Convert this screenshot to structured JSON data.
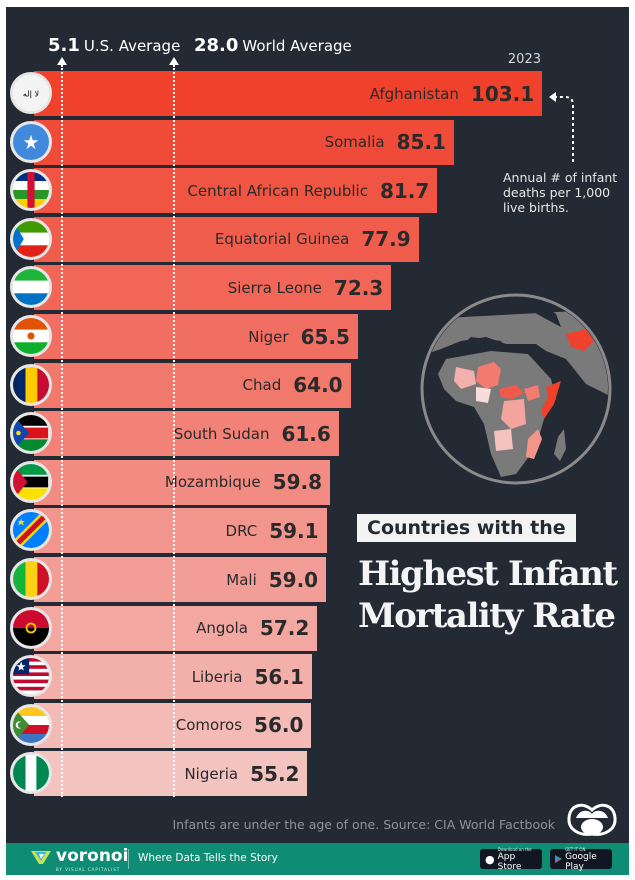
{
  "reference_lines": [
    {
      "value": "5.1",
      "label": "U.S. Average"
    },
    {
      "value": "28.0",
      "label": "World Average"
    }
  ],
  "year_label": "2023",
  "annotation": "Annual # of infant deaths per 1,000 live births.",
  "title": {
    "kicker": "Countries with the",
    "main_line1": "Highest Infant",
    "main_line2": "Mortality Rate"
  },
  "source": "Infants are under the age of one. Source: CIA World Factbook",
  "footer": {
    "brand": "voronoi",
    "brand_sub": "BY VISUAL CAPITALIST",
    "tagline": "Where Data Tells the Story",
    "app_store_small": "Download on the",
    "app_store_big": "App Store",
    "google_play_small": "GET IT ON",
    "google_play_big": "Google Play"
  },
  "colors": {
    "background": "#232a33",
    "bar_top": "#f0412d",
    "bar_bottom": "#f3c3c0",
    "footer": "#0e8c74",
    "text_dark": "#2a2a2a"
  },
  "chart_data": {
    "type": "bar",
    "orientation": "horizontal",
    "title": "Countries with the Highest Infant Mortality Rate",
    "xlabel": "Annual # of infant deaths per 1,000 live births",
    "ylabel": "",
    "year": "2023",
    "xlim": [
      0,
      110
    ],
    "grid": false,
    "categories": [
      "Afghanistan",
      "Somalia",
      "Central African Republic",
      "Equatorial Guinea",
      "Sierra Leone",
      "Niger",
      "Chad",
      "South Sudan",
      "Mozambique",
      "DRC",
      "Mali",
      "Angola",
      "Liberia",
      "Comoros",
      "Nigeria"
    ],
    "values": [
      103.1,
      85.1,
      81.7,
      77.9,
      72.3,
      65.5,
      64.0,
      61.6,
      59.8,
      59.1,
      59.0,
      57.2,
      56.1,
      56.0,
      55.2
    ],
    "value_labels": [
      "103.1",
      "85.1",
      "81.7",
      "77.9",
      "72.3",
      "65.5",
      "64.0",
      "61.6",
      "59.8",
      "59.1",
      "59.0",
      "57.2",
      "56.1",
      "56.0",
      "55.2"
    ],
    "flags": [
      "afghanistan-flag",
      "somalia-flag",
      "car-flag",
      "equatorial-guinea-flag",
      "sierra-leone-flag",
      "niger-flag",
      "chad-flag",
      "south-sudan-flag",
      "mozambique-flag",
      "drc-flag",
      "mali-flag",
      "angola-flag",
      "liberia-flag",
      "comoros-flag",
      "nigeria-flag"
    ],
    "reference_lines": [
      {
        "name": "U.S. Average",
        "value": 5.1
      },
      {
        "name": "World Average",
        "value": 28.0
      }
    ]
  }
}
